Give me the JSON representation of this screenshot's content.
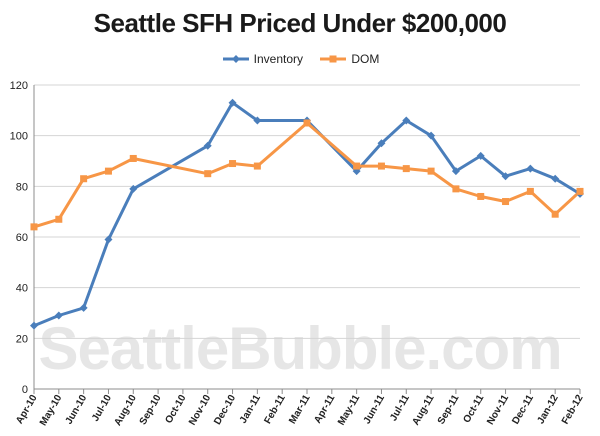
{
  "chart_data": {
    "type": "line",
    "title": "Seattle SFH Priced Under $200,000",
    "categories": [
      "Apr-10",
      "May-10",
      "Jun-10",
      "Jul-10",
      "Aug-10",
      "Sep-10",
      "Oct-10",
      "Nov-10",
      "Dec-10",
      "Jan-11",
      "Feb-11",
      "Mar-11",
      "Apr-11",
      "May-11",
      "Jun-11",
      "Jul-11",
      "Aug-11",
      "Sep-11",
      "Oct-11",
      "Nov-11",
      "Dec-11",
      "Jan-12",
      "Feb-12"
    ],
    "ylim": [
      0,
      120
    ],
    "yticks": [
      "0",
      "20",
      "40",
      "60",
      "80",
      "100",
      "120"
    ],
    "grid": true,
    "legend_position": "top",
    "series": [
      {
        "name": "Inventory",
        "color": "#4a7ebb",
        "marker": "diamond",
        "points": [
          [
            0,
            25
          ],
          [
            1,
            29
          ],
          [
            2,
            32
          ],
          [
            3,
            59
          ],
          [
            4,
            79
          ],
          [
            7,
            96
          ],
          [
            8,
            113
          ],
          [
            9,
            106
          ],
          [
            11,
            106
          ],
          [
            13,
            86
          ],
          [
            14,
            97
          ],
          [
            15,
            106
          ],
          [
            16,
            100
          ],
          [
            17,
            86
          ],
          [
            18,
            92
          ],
          [
            19,
            84
          ],
          [
            20,
            87
          ],
          [
            21,
            83
          ],
          [
            22,
            77
          ]
        ]
      },
      {
        "name": "DOM",
        "color": "#f79646",
        "marker": "square",
        "points": [
          [
            0,
            64
          ],
          [
            1,
            67
          ],
          [
            2,
            83
          ],
          [
            3,
            86
          ],
          [
            4,
            91
          ],
          [
            7,
            85
          ],
          [
            8,
            89
          ],
          [
            9,
            88
          ],
          [
            11,
            105
          ],
          [
            13,
            88
          ],
          [
            14,
            88
          ],
          [
            15,
            87
          ],
          [
            16,
            86
          ],
          [
            17,
            79
          ],
          [
            18,
            76
          ],
          [
            19,
            74
          ],
          [
            20,
            78
          ],
          [
            21,
            69
          ],
          [
            22,
            78
          ]
        ]
      }
    ]
  },
  "watermark": "SeattleBubble.com"
}
